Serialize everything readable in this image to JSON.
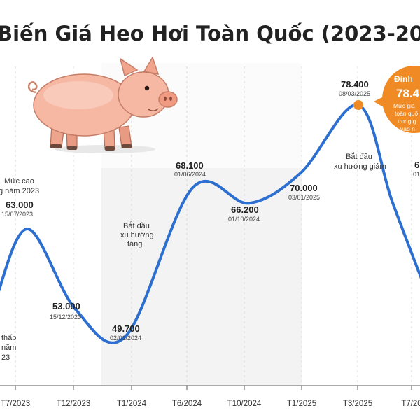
{
  "chart_data": {
    "type": "line",
    "title": "Biến Giá Heo Hơi Toàn Quốc (2023-20",
    "xlabel": "",
    "ylabel": "",
    "ylim": [
      40000,
      82000
    ],
    "x_ticks": [
      "T7/2023",
      "T12/2023",
      "T1/2024",
      "T6/2024",
      "T10/2024",
      "T1/2025",
      "T3/2025",
      "T7/20"
    ],
    "points": [
      {
        "value_label": "63.000",
        "date": "15/07/2023",
        "value": 63000
      },
      {
        "value_label": "53.000",
        "date": "15/12/2023",
        "value": 53000
      },
      {
        "value_label": "49.700",
        "date": "02/01/2024",
        "value": 49700
      },
      {
        "value_label": "68.100",
        "date": "01/06/2024",
        "value": 68100
      },
      {
        "value_label": "66.200",
        "date": "01/10/2024",
        "value": 66200
      },
      {
        "value_label": "70.000",
        "date": "03/01/2025",
        "value": 70000
      },
      {
        "value_label": "78.400",
        "date": "08/03/2025",
        "value": 78400
      }
    ],
    "annotations": {
      "high_2023": [
        "Mức cao",
        "g năm 2023"
      ],
      "low_2023": [
        "thấp",
        "năm",
        "23"
      ],
      "uptrend": [
        "Bắt đầu",
        "xu hướng",
        "tăng"
      ],
      "downtrend": [
        "Bắt đầu",
        "xu hướng giảm"
      ],
      "right_partial_value": "6",
      "right_partial_date": "01"
    },
    "peak_callout": {
      "title": "Đỉnh",
      "value": "78.4",
      "note_lines": [
        "Mức giá",
        "toàn quố",
        "trong g",
        "vào n"
      ]
    },
    "colors": {
      "line": "#2c6fd0",
      "peak": "#f08a24",
      "grid": "#d9d9d9",
      "shade": "#f2f2f2"
    },
    "illustration": "pig"
  }
}
